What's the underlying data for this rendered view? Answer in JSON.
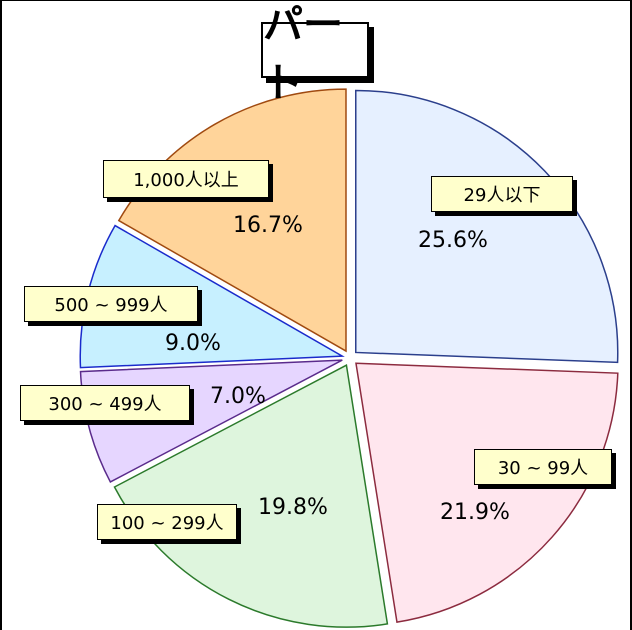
{
  "chart_data": {
    "type": "pie",
    "title": "パート",
    "exploded": true,
    "slices": [
      {
        "label": "29人以下",
        "value": 25.6,
        "value_label": "25.6%",
        "color": "#e6f0ff"
      },
      {
        "label": "30 ~ 99人",
        "value": 21.9,
        "value_label": "21.9%",
        "color": "#ffe6ee"
      },
      {
        "label": "100 ~ 299人",
        "value": 19.8,
        "value_label": "19.8%",
        "color": "#def5dd"
      },
      {
        "label": "300 ~ 499人",
        "value": 7.0,
        "value_label": "7.0%",
        "color": "#e6d6ff"
      },
      {
        "label": "500 ~ 999人",
        "value": 9.0,
        "value_label": "9.0%",
        "color": "#c7f0ff"
      },
      {
        "label": "1,000人以上",
        "value": 16.7,
        "value_label": "16.7%",
        "color": "#ffd49a"
      }
    ]
  }
}
